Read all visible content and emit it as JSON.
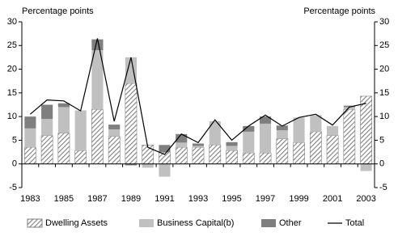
{
  "chart_data": {
    "type": "bar",
    "ylabel": "Percentage points",
    "y2label": "Percentage points",
    "categories": [
      "1983",
      null,
      "1985",
      null,
      "1987",
      null,
      "1989",
      null,
      "1991",
      null,
      "1993",
      null,
      "1995",
      null,
      "1997",
      null,
      "1999",
      null,
      "2001",
      null,
      "2003"
    ],
    "series": [
      {
        "name": "Dwelling Assets",
        "type": "bar",
        "pattern": "hatch",
        "color": "#7f7f7f",
        "values": [
          3.5,
          6,
          6.5,
          2.8,
          11.5,
          5.8,
          17,
          4,
          2.5,
          3.5,
          3.5,
          4,
          2.8,
          2.3,
          2.3,
          5.3,
          4.5,
          6.8,
          6,
          11.5,
          14.3
        ]
      },
      {
        "name": "Business Capital(b)",
        "type": "bar",
        "color": "#c0c0c0",
        "values": [
          4,
          3.5,
          5.5,
          8.5,
          12.5,
          1.5,
          5.5,
          -0.8,
          -2.7,
          1,
          0.3,
          5,
          1,
          4.5,
          6.2,
          1.8,
          5.3,
          3.5,
          2,
          0.5,
          -1.5
        ]
      },
      {
        "name": "Other",
        "type": "bar",
        "color": "#7f7f7f",
        "values": [
          2.5,
          3,
          0.8,
          0,
          2.3,
          1,
          -0.3,
          0,
          1.5,
          1.8,
          0.5,
          0,
          0.8,
          1.2,
          1.5,
          1,
          0,
          0,
          0,
          0.3,
          0
        ]
      },
      {
        "name": "Total",
        "type": "line",
        "color": "#000000",
        "values": [
          10.5,
          13.5,
          13.3,
          11.2,
          26.5,
          9,
          22.5,
          3.5,
          2,
          6.3,
          4.5,
          9.3,
          5,
          8,
          10.3,
          8,
          9.8,
          10.5,
          8.2,
          12,
          12.8
        ]
      }
    ],
    "ylim": [
      -5,
      30
    ],
    "yticks": [
      -5,
      0,
      5,
      10,
      15,
      20,
      25,
      30
    ],
    "y2lim": [
      -5,
      30
    ],
    "y2ticks": [
      -5,
      0,
      5,
      10,
      15,
      20,
      25,
      30
    ],
    "grid": false
  }
}
